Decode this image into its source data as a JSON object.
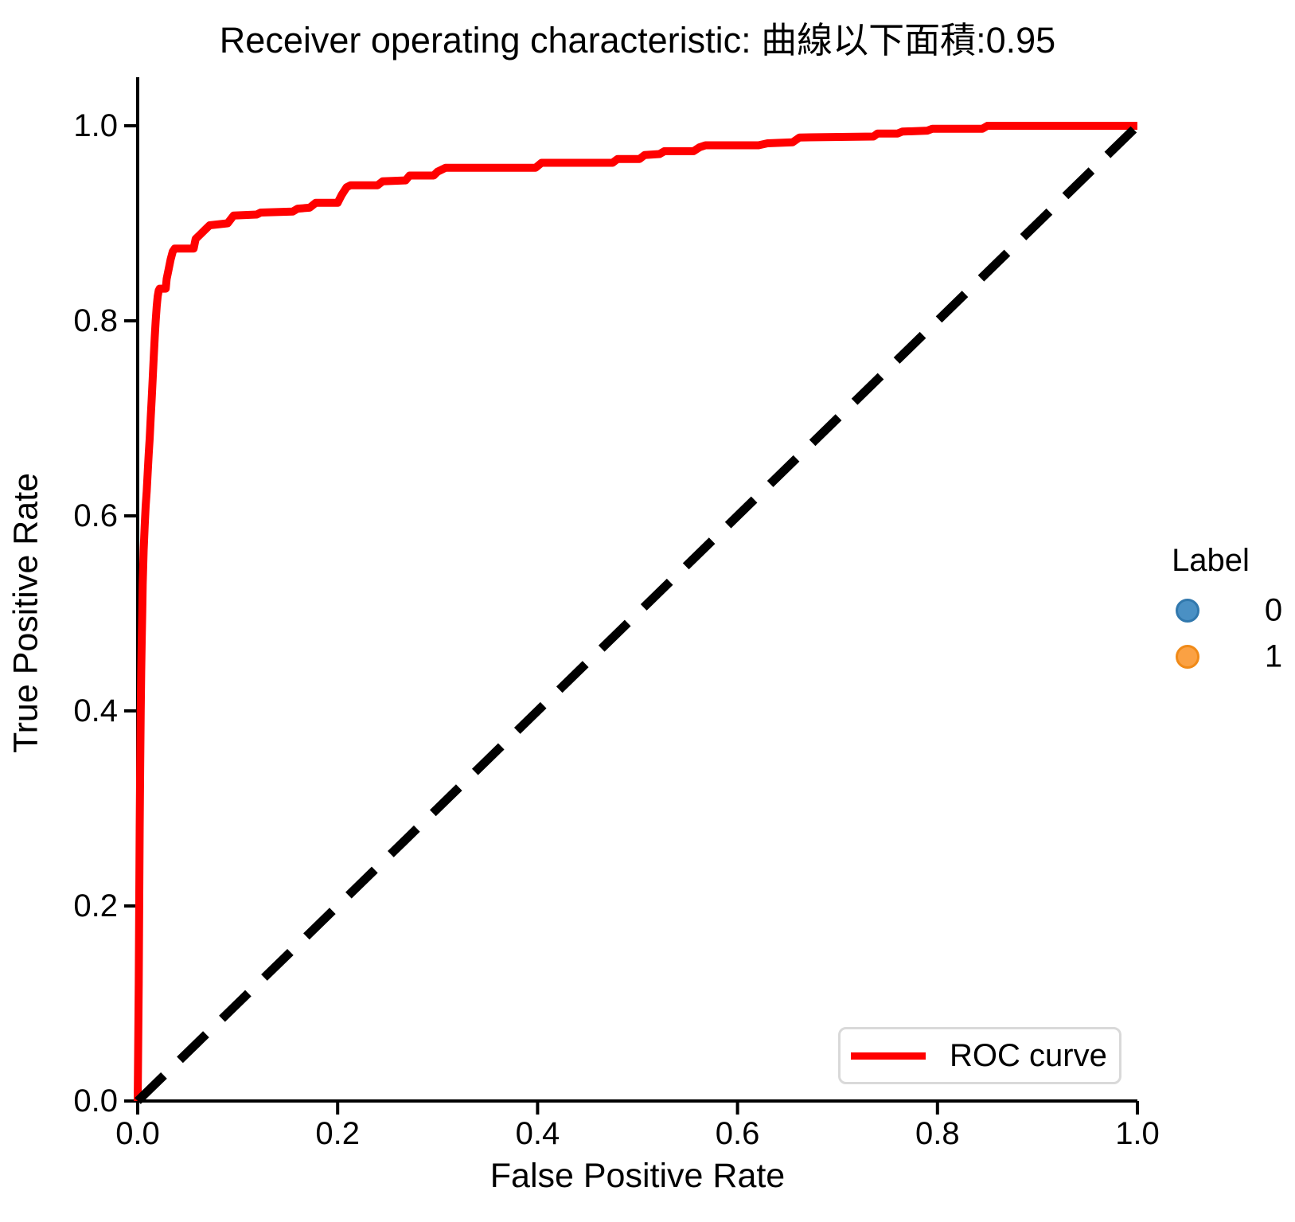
{
  "figure": {
    "title": "Receiver operating characteristic: 曲線以下面積:0.95"
  },
  "axes": {
    "xlabel": "False Positive Rate",
    "ylabel": "True Positive Rate",
    "xtick_labels": [
      "0.0",
      "0.2",
      "0.4",
      "0.6",
      "0.8",
      "1.0"
    ],
    "ytick_labels": [
      "0.0",
      "0.2",
      "0.4",
      "0.6",
      "0.8",
      "1.0"
    ]
  },
  "legends": {
    "roc": {
      "label": "ROC curve",
      "line_color": "#ff0000"
    },
    "hue": {
      "title": "Label",
      "items": [
        {
          "label": "0",
          "fill": "#4a90c4",
          "edge": "#3178ad"
        },
        {
          "label": "1",
          "fill": "#fba143",
          "edge": "#f08a18"
        }
      ]
    }
  },
  "chart_data": {
    "type": "line",
    "title": "Receiver operating characteristic: 曲線以下面積:0.95",
    "auc": 0.95,
    "xlabel": "False Positive Rate",
    "ylabel": "True Positive Rate",
    "xlim": [
      0.0,
      1.0
    ],
    "ylim": [
      0.0,
      1.05
    ],
    "xticks": [
      0.0,
      0.2,
      0.4,
      0.6,
      0.8,
      1.0
    ],
    "yticks": [
      0.0,
      0.2,
      0.4,
      0.6,
      0.8,
      1.0
    ],
    "grid": false,
    "legend_position": "lower right",
    "series": [
      {
        "name": "ROC curve",
        "color": "#ff0000",
        "style": "solid",
        "points": [
          [
            0.0,
            0.0
          ],
          [
            0.001,
            0.12
          ],
          [
            0.0015,
            0.2
          ],
          [
            0.002,
            0.28
          ],
          [
            0.0025,
            0.34
          ],
          [
            0.003,
            0.4
          ],
          [
            0.0035,
            0.44
          ],
          [
            0.004,
            0.47
          ],
          [
            0.0045,
            0.5
          ],
          [
            0.005,
            0.53
          ],
          [
            0.006,
            0.565
          ],
          [
            0.007,
            0.59
          ],
          [
            0.008,
            0.61
          ],
          [
            0.009,
            0.625
          ],
          [
            0.01,
            0.645
          ],
          [
            0.011,
            0.663
          ],
          [
            0.012,
            0.68
          ],
          [
            0.013,
            0.7
          ],
          [
            0.014,
            0.72
          ],
          [
            0.015,
            0.74
          ],
          [
            0.016,
            0.762
          ],
          [
            0.017,
            0.783
          ],
          [
            0.018,
            0.8
          ],
          [
            0.019,
            0.815
          ],
          [
            0.02,
            0.825
          ],
          [
            0.021,
            0.831
          ],
          [
            0.022,
            0.833
          ],
          [
            0.028,
            0.833
          ],
          [
            0.029,
            0.843
          ],
          [
            0.031,
            0.853
          ],
          [
            0.033,
            0.863
          ],
          [
            0.035,
            0.871
          ],
          [
            0.037,
            0.874
          ],
          [
            0.056,
            0.874
          ],
          [
            0.058,
            0.884
          ],
          [
            0.062,
            0.888
          ],
          [
            0.068,
            0.894
          ],
          [
            0.072,
            0.898
          ],
          [
            0.09,
            0.9
          ],
          [
            0.093,
            0.904
          ],
          [
            0.096,
            0.908
          ],
          [
            0.119,
            0.909
          ],
          [
            0.123,
            0.911
          ],
          [
            0.155,
            0.912
          ],
          [
            0.16,
            0.915
          ],
          [
            0.172,
            0.916
          ],
          [
            0.178,
            0.921
          ],
          [
            0.2,
            0.921
          ],
          [
            0.204,
            0.929
          ],
          [
            0.209,
            0.937
          ],
          [
            0.213,
            0.939
          ],
          [
            0.24,
            0.939
          ],
          [
            0.245,
            0.943
          ],
          [
            0.268,
            0.944
          ],
          [
            0.272,
            0.949
          ],
          [
            0.296,
            0.949
          ],
          [
            0.3,
            0.953
          ],
          [
            0.308,
            0.957
          ],
          [
            0.398,
            0.957
          ],
          [
            0.404,
            0.962
          ],
          [
            0.475,
            0.962
          ],
          [
            0.48,
            0.966
          ],
          [
            0.502,
            0.966
          ],
          [
            0.507,
            0.97
          ],
          [
            0.522,
            0.971
          ],
          [
            0.527,
            0.974
          ],
          [
            0.556,
            0.974
          ],
          [
            0.562,
            0.978
          ],
          [
            0.568,
            0.98
          ],
          [
            0.621,
            0.98
          ],
          [
            0.63,
            0.982
          ],
          [
            0.655,
            0.983
          ],
          [
            0.662,
            0.988
          ],
          [
            0.736,
            0.989
          ],
          [
            0.74,
            0.992
          ],
          [
            0.76,
            0.992
          ],
          [
            0.765,
            0.994
          ],
          [
            0.79,
            0.995
          ],
          [
            0.795,
            0.997
          ],
          [
            0.845,
            0.997
          ],
          [
            0.85,
            1.0
          ],
          [
            1.0,
            1.0
          ]
        ]
      },
      {
        "name": "Chance diagonal",
        "color": "#000000",
        "style": "dashed",
        "points": [
          [
            0.0,
            0.0
          ],
          [
            1.0,
            1.0
          ]
        ]
      }
    ]
  }
}
